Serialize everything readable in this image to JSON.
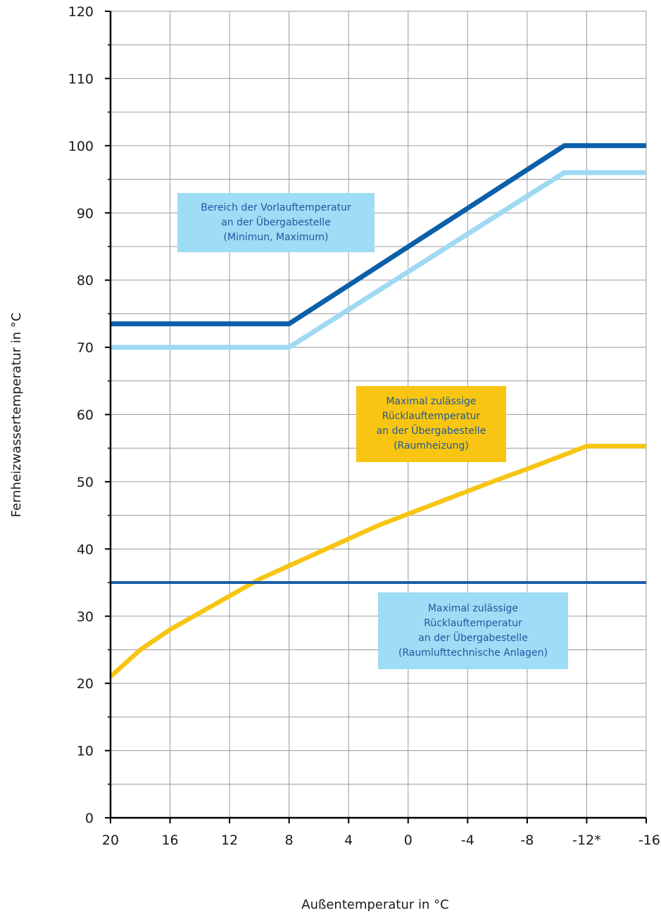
{
  "chart_data": {
    "type": "line",
    "xlabel": "Außentemperatur in °C",
    "ylabel": "Fernheizwassertemperatur in °C",
    "xlim": [
      20,
      -16
    ],
    "ylim": [
      0,
      120
    ],
    "x_ticks": [
      "20",
      "16",
      "12",
      "8",
      "4",
      "0",
      "-4",
      "-8",
      "-12*",
      "-16"
    ],
    "x_tick_values": [
      20,
      16,
      12,
      8,
      4,
      0,
      -4,
      -8,
      -12,
      -16
    ],
    "y_ticks": [
      "0",
      "10",
      "20",
      "30",
      "40",
      "50",
      "60",
      "70",
      "80",
      "90",
      "100",
      "110",
      "120"
    ],
    "y_tick_values": [
      0,
      10,
      20,
      30,
      40,
      50,
      60,
      70,
      80,
      90,
      100,
      110,
      120
    ],
    "grid": true,
    "series": [
      {
        "color": "#0b5fa8",
        "x": [
          20,
          8,
          -10.5,
          -16
        ],
        "y": [
          73.5,
          73.5,
          100,
          100
        ]
      },
      {
        "color": "#9fd9f3",
        "x": [
          20,
          8,
          -10.5,
          -16
        ],
        "y": [
          70,
          70,
          96,
          96
        ]
      },
      {
        "color": "#f7c512",
        "x": [
          20,
          18,
          16,
          14,
          12,
          10,
          8,
          6,
          4,
          2,
          0,
          -2,
          -4,
          -6,
          -8,
          -10,
          -12,
          -16
        ],
        "y": [
          21,
          25,
          28,
          30.5,
          33,
          35.5,
          37.5,
          39.5,
          41.5,
          43.5,
          45.2,
          46.9,
          48.6,
          50.3,
          51.9,
          53.6,
          55.3,
          55.3
        ]
      },
      {
        "color": "#1a5fa5",
        "x": [
          20,
          -16
        ],
        "y": [
          35,
          35
        ]
      }
    ],
    "annotations": [
      {
        "lines": [
          "Bereich der Vorlauftemperatur",
          "an der Übergabestelle",
          "(Minimun, Maximum)"
        ],
        "background": "#9fdcf5",
        "color": "#1e5aa0"
      },
      {
        "lines": [
          "Maximal zulässige",
          "Rücklauftemperatur",
          "an der Übergabestelle",
          "(Raumheizung)"
        ],
        "background": "#f8c512",
        "color": "#1e5aa0"
      },
      {
        "lines": [
          "Maximal zulässige",
          "Rücklauftemperatur",
          "an der Übergabestelle",
          "(Raumlufttechnische Anlagen)"
        ],
        "background": "#9fdcf5",
        "color": "#1e5aa0"
      }
    ]
  }
}
